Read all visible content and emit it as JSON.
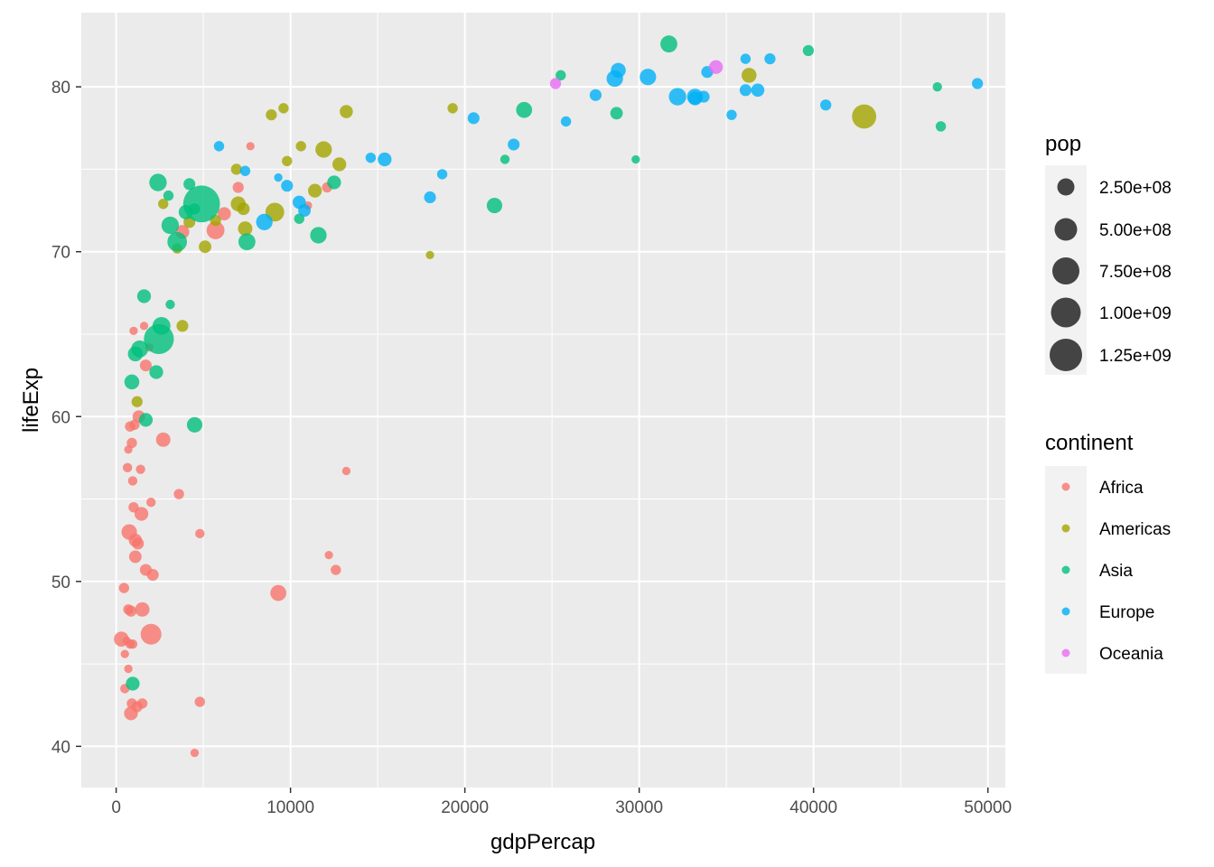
{
  "chart_data": {
    "type": "scatter",
    "xlabel": "gdpPercap",
    "ylabel": "lifeExp",
    "xlim": [
      -2000,
      51000
    ],
    "ylim": [
      37.5,
      84.5
    ],
    "x_ticks": [
      0,
      10000,
      20000,
      30000,
      40000,
      50000
    ],
    "y_ticks": [
      40,
      50,
      60,
      70,
      80
    ],
    "x_tick_labels": [
      "0",
      "10000",
      "20000",
      "30000",
      "40000",
      "50000"
    ],
    "y_tick_labels": [
      "40",
      "50",
      "60",
      "70",
      "80"
    ],
    "grid": true,
    "legend_placement": "right",
    "size_legend": {
      "title": "pop",
      "entries": [
        {
          "value": 250000000,
          "label": "2.50e+08"
        },
        {
          "value": 500000000,
          "label": "5.00e+08"
        },
        {
          "value": 750000000,
          "label": "7.50e+08"
        },
        {
          "value": 1000000000,
          "label": "1.00e+09"
        },
        {
          "value": 1250000000,
          "label": "1.25e+09"
        }
      ]
    },
    "color_legend": {
      "title": "continent",
      "entries": [
        {
          "name": "Africa",
          "color": "#F8766D"
        },
        {
          "name": "Americas",
          "color": "#A3A500"
        },
        {
          "name": "Asia",
          "color": "#00BF7D"
        },
        {
          "name": "Europe",
          "color": "#00B0F6"
        },
        {
          "name": "Oceania",
          "color": "#E76BF3"
        }
      ]
    },
    "series": [
      {
        "name": "Africa",
        "color": "#F8766D",
        "points": [
          [
            300,
            46.5,
            12
          ],
          [
            450,
            49.6,
            5
          ],
          [
            500,
            45.6,
            3
          ],
          [
            500,
            43.5,
            4
          ],
          [
            600,
            46.4,
            3
          ],
          [
            650,
            56.9,
            4
          ],
          [
            700,
            58.0,
            3
          ],
          [
            700,
            44.7,
            3
          ],
          [
            700,
            48.3,
            5
          ],
          [
            750,
            53.0,
            13
          ],
          [
            800,
            59.4,
            5
          ],
          [
            800,
            46.2,
            4
          ],
          [
            850,
            48.2,
            6
          ],
          [
            850,
            42.0,
            10
          ],
          [
            900,
            42.6,
            5
          ],
          [
            900,
            58.4,
            5
          ],
          [
            950,
            56.1,
            4
          ],
          [
            950,
            46.2,
            4
          ],
          [
            1000,
            65.2,
            3
          ],
          [
            1000,
            54.5,
            5
          ],
          [
            1050,
            59.5,
            5
          ],
          [
            1100,
            52.5,
            9
          ],
          [
            1100,
            51.5,
            8
          ],
          [
            1200,
            42.4,
            6
          ],
          [
            1250,
            52.3,
            7
          ],
          [
            1300,
            60.0,
            8
          ],
          [
            1400,
            56.8,
            4
          ],
          [
            1450,
            54.1,
            10
          ],
          [
            1500,
            48.3,
            11
          ],
          [
            1500,
            42.6,
            5
          ],
          [
            1600,
            65.5,
            3
          ],
          [
            1700,
            63.1,
            7
          ],
          [
            1700,
            50.7,
            7
          ],
          [
            1900,
            64.2,
            3
          ],
          [
            2000,
            46.8,
            25
          ],
          [
            2000,
            54.8,
            4
          ],
          [
            2100,
            50.4,
            7
          ],
          [
            2700,
            58.6,
            11
          ],
          [
            3600,
            55.3,
            5
          ],
          [
            3800,
            71.2,
            10
          ],
          [
            4500,
            39.6,
            3
          ],
          [
            4800,
            52.9,
            4
          ],
          [
            4800,
            42.7,
            5
          ],
          [
            5700,
            71.3,
            18
          ],
          [
            6200,
            72.3,
            9
          ],
          [
            7000,
            73.9,
            6
          ],
          [
            7700,
            76.4,
            3
          ],
          [
            9300,
            49.3,
            14
          ],
          [
            11000,
            72.8,
            3
          ],
          [
            12100,
            73.9,
            5
          ],
          [
            12200,
            51.6,
            3
          ],
          [
            12600,
            50.7,
            5
          ],
          [
            13200,
            56.7,
            3
          ]
        ]
      },
      {
        "name": "Americas",
        "color": "#A3A500",
        "points": [
          [
            1200,
            60.9,
            6
          ],
          [
            2700,
            72.9,
            5
          ],
          [
            3500,
            70.2,
            5
          ],
          [
            3800,
            65.5,
            7
          ],
          [
            4200,
            71.8,
            7
          ],
          [
            5100,
            70.3,
            8
          ],
          [
            5700,
            71.9,
            6
          ],
          [
            6900,
            75.0,
            6
          ],
          [
            7000,
            72.9,
            12
          ],
          [
            7300,
            72.6,
            8
          ],
          [
            7400,
            71.4,
            11
          ],
          [
            8900,
            78.3,
            6
          ],
          [
            9100,
            72.4,
            20
          ],
          [
            9600,
            78.7,
            5
          ],
          [
            9800,
            75.5,
            5
          ],
          [
            10600,
            76.4,
            5
          ],
          [
            11400,
            73.7,
            10
          ],
          [
            11900,
            76.2,
            15
          ],
          [
            12800,
            75.3,
            10
          ],
          [
            13200,
            78.5,
            9
          ],
          [
            18000,
            69.8,
            3
          ],
          [
            19300,
            78.7,
            5
          ],
          [
            36300,
            80.7,
            12
          ],
          [
            42900,
            78.2,
            35
          ]
        ]
      },
      {
        "name": "Asia",
        "color": "#00BF7D",
        "points": [
          [
            900,
            62.1,
            12
          ],
          [
            950,
            43.8,
            10
          ],
          [
            1100,
            63.8,
            12
          ],
          [
            1350,
            64.1,
            16
          ],
          [
            1600,
            67.3,
            10
          ],
          [
            1700,
            59.8,
            10
          ],
          [
            2300,
            62.7,
            10
          ],
          [
            2400,
            74.2,
            17
          ],
          [
            2450,
            64.7,
            55
          ],
          [
            2600,
            65.5,
            18
          ],
          [
            3100,
            66.8,
            4
          ],
          [
            3100,
            71.6,
            17
          ],
          [
            3000,
            73.4,
            5
          ],
          [
            3500,
            70.6,
            22
          ],
          [
            4000,
            72.4,
            11
          ],
          [
            4200,
            74.1,
            7
          ],
          [
            4500,
            59.5,
            13
          ],
          [
            4500,
            72.6,
            6
          ],
          [
            4900,
            72.9,
            85
          ],
          [
            7500,
            70.6,
            16
          ],
          [
            10500,
            72.0,
            5
          ],
          [
            11600,
            71.0,
            15
          ],
          [
            12500,
            74.2,
            10
          ],
          [
            21700,
            72.8,
            13
          ],
          [
            22300,
            75.6,
            4
          ],
          [
            23400,
            78.6,
            14
          ],
          [
            25500,
            80.7,
            5
          ],
          [
            28700,
            78.4,
            8
          ],
          [
            29800,
            75.6,
            3
          ],
          [
            31700,
            82.6,
            16
          ],
          [
            39700,
            82.2,
            6
          ],
          [
            47100,
            80.0,
            4
          ],
          [
            47300,
            77.6,
            5
          ]
        ]
      },
      {
        "name": "Europe",
        "color": "#00B0F6",
        "points": [
          [
            5900,
            76.4,
            5
          ],
          [
            7400,
            74.9,
            5
          ],
          [
            8500,
            71.8,
            15
          ],
          [
            9300,
            74.5,
            3
          ],
          [
            9800,
            74.0,
            7
          ],
          [
            10500,
            73.0,
            9
          ],
          [
            10800,
            72.5,
            8
          ],
          [
            14600,
            75.7,
            5
          ],
          [
            15400,
            75.6,
            10
          ],
          [
            18000,
            73.3,
            7
          ],
          [
            18700,
            74.7,
            5
          ],
          [
            20500,
            78.1,
            7
          ],
          [
            22800,
            76.5,
            7
          ],
          [
            25800,
            77.9,
            5
          ],
          [
            27500,
            79.5,
            7
          ],
          [
            28600,
            80.5,
            15
          ],
          [
            28800,
            81.0,
            12
          ],
          [
            30500,
            80.6,
            15
          ],
          [
            32200,
            79.4,
            17
          ],
          [
            33200,
            79.3,
            10
          ],
          [
            33200,
            79.4,
            14
          ],
          [
            33700,
            79.4,
            7
          ],
          [
            33900,
            80.9,
            7
          ],
          [
            35300,
            78.3,
            5
          ],
          [
            36100,
            81.7,
            5
          ],
          [
            36100,
            79.8,
            7
          ],
          [
            36800,
            79.8,
            9
          ],
          [
            37500,
            81.7,
            6
          ],
          [
            40700,
            78.9,
            6
          ],
          [
            49400,
            80.2,
            6
          ]
        ]
      },
      {
        "name": "Oceania",
        "color": "#E76BF3",
        "points": [
          [
            25200,
            80.2,
            6
          ],
          [
            34400,
            81.2,
            10
          ]
        ]
      }
    ]
  }
}
